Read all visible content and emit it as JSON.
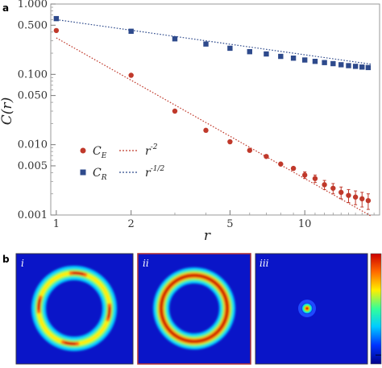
{
  "panel_a_label": "a",
  "panel_b_label": "b",
  "chart_data": {
    "type": "scatter",
    "xscale": "log",
    "yscale": "log",
    "xlabel": "r",
    "ylabel": "C(r)",
    "xlim": [
      0.95,
      20
    ],
    "ylim": [
      0.001,
      1.0
    ],
    "xticks": [
      1,
      2,
      5,
      10
    ],
    "xtick_labels": [
      "1",
      "2",
      "5",
      "10"
    ],
    "yticks": [
      0.001,
      0.005,
      0.01,
      0.05,
      0.1,
      0.5,
      1.0
    ],
    "ytick_labels": [
      "0.001",
      "0.005",
      "0.010",
      "0.050",
      "0.100",
      "0.500",
      "1.000"
    ],
    "series": [
      {
        "name": "C_E",
        "marker": "circle",
        "color": "#c0392b",
        "x": [
          1,
          2,
          3,
          4,
          5,
          6,
          7,
          8,
          9,
          10,
          11,
          12,
          13,
          14,
          15,
          16,
          17,
          18
        ],
        "y": [
          0.42,
          0.097,
          0.03,
          0.016,
          0.011,
          0.0083,
          0.0068,
          0.0053,
          0.0046,
          0.0037,
          0.0033,
          0.0027,
          0.0024,
          0.0021,
          0.0019,
          0.0018,
          0.0017,
          0.0016
        ],
        "yerr": [
          0,
          0,
          0,
          0,
          0,
          0,
          0,
          0,
          0,
          0.0004,
          0.0004,
          0.0004,
          0.0004,
          0.0004,
          0.0004,
          0.0004,
          0.0004,
          0.0004
        ]
      },
      {
        "name": "C_R",
        "marker": "square",
        "color": "#2e4a8c",
        "x": [
          1,
          2,
          3,
          4,
          5,
          6,
          7,
          8,
          9,
          10,
          11,
          12,
          13,
          14,
          15,
          16,
          17,
          18
        ],
        "y": [
          0.62,
          0.41,
          0.32,
          0.27,
          0.235,
          0.21,
          0.195,
          0.18,
          0.17,
          0.16,
          0.153,
          0.147,
          0.142,
          0.137,
          0.133,
          0.13,
          0.127,
          0.125
        ]
      }
    ],
    "fits": [
      {
        "name": "r^-2",
        "color": "#c0392b",
        "style": "dotted",
        "amplitude": 0.33,
        "exponent": -2
      },
      {
        "name": "r^-1/2",
        "color": "#2e4a8c",
        "style": "dotted",
        "amplitude": 0.6,
        "exponent": -0.5
      }
    ],
    "legend": [
      {
        "symbol": "circle",
        "color": "#c0392b",
        "base": "C",
        "sub": "E",
        "line_base": "r",
        "line_sup": "-2"
      },
      {
        "symbol": "square",
        "color": "#2e4a8c",
        "base": "C",
        "sub": "R",
        "line_base": "r",
        "line_sup": "-1/2"
      }
    ],
    "legend_position": "lower-left"
  },
  "panel_b": {
    "panels": [
      {
        "label": "i",
        "pattern": "segmented-ring"
      },
      {
        "label": "ii",
        "pattern": "ring"
      },
      {
        "label": "iii",
        "pattern": "dot"
      }
    ],
    "colormap": [
      "#00008b",
      "#0033ff",
      "#00ccff",
      "#33ff99",
      "#ffee00",
      "#ff6600",
      "#cc0000"
    ],
    "background_color": "#0a15c8"
  }
}
